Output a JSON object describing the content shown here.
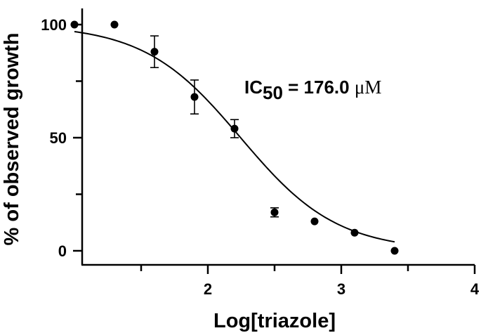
{
  "chart_data": {
    "type": "scatter",
    "xlabel": "Log[triazole]",
    "ylabel": "% of observed growth",
    "xlim": [
      1.0,
      4.0
    ],
    "ylim": [
      0,
      100
    ],
    "x_ticks": [
      2,
      3,
      4
    ],
    "x_minor_ticks": [
      1.5,
      2.5,
      3.5
    ],
    "y_ticks": [
      0,
      50,
      100
    ],
    "y_minor_ticks": [
      25,
      75
    ],
    "grid": false,
    "annotation": {
      "prefix": "IC",
      "subscript": "50",
      "value_text": " = 176.0 ",
      "unit": "μM"
    },
    "series": [
      {
        "points": [
          {
            "x": 1.0,
            "y": 100,
            "err": 0
          },
          {
            "x": 1.3,
            "y": 100,
            "err": 0
          },
          {
            "x": 1.6,
            "y": 88,
            "err": 7
          },
          {
            "x": 1.9,
            "y": 68,
            "err": 7.5
          },
          {
            "x": 2.2,
            "y": 54,
            "err": 4
          },
          {
            "x": 2.5,
            "y": 17,
            "err": 2
          },
          {
            "x": 2.8,
            "y": 13,
            "err": 0
          },
          {
            "x": 3.1,
            "y": 8,
            "err": 0
          },
          {
            "x": 3.4,
            "y": 0,
            "err": 0
          }
        ]
      }
    ],
    "fit": {
      "model": "four-parameter logistic",
      "top": 100,
      "bottom": 0,
      "log_ic50": 2.2455,
      "hill_slope": -1.2,
      "x_range": [
        1.0,
        3.4
      ]
    }
  }
}
